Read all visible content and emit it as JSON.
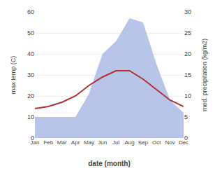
{
  "chart_data": {
    "type": "line",
    "xlabel": "date (month)",
    "ylabel": "max temp (C)",
    "y2label": "med. precipitation (kg/m2)",
    "categories": [
      "Jan",
      "Feb",
      "Mar",
      "Apr",
      "May",
      "Jun",
      "Jul",
      "Aug",
      "Sep",
      "Oct",
      "Nov",
      "Dec"
    ],
    "series": [
      {
        "type": "area",
        "color": "#b8c4e8",
        "values": [
          10,
          10,
          10,
          10,
          21,
          40,
          46,
          57,
          55,
          35,
          18,
          12
        ]
      },
      {
        "type": "line",
        "color": "#b03030",
        "values": [
          14,
          15,
          17,
          20,
          25,
          29,
          32,
          32,
          28,
          23,
          18,
          15
        ]
      }
    ],
    "ylim": [
      0,
      60
    ],
    "yticks": [
      0,
      10,
      20,
      30,
      40,
      50,
      60
    ],
    "y2lim": [
      0,
      30
    ],
    "y2ticks": [
      0,
      5,
      10,
      15,
      20,
      25,
      30
    ],
    "grid": true
  }
}
